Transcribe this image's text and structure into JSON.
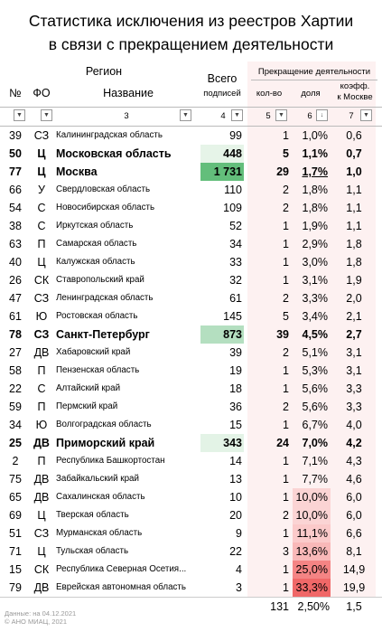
{
  "title_line1": "Статистика исключения из реестров Хартии",
  "title_line2": "в связи с прекращением деятельности",
  "headers": {
    "region": "Регион",
    "num": "№",
    "fo": "ФО",
    "name": "Название",
    "total_line1": "Всего",
    "total_line2": "подписей",
    "termination": "Прекращение деятельности",
    "count": "кол-во",
    "share": "доля",
    "coef_line1": "коэфф.",
    "coef_line2": "к Москве"
  },
  "filter_labels": {
    "col3": "3",
    "col4": "4",
    "col5": "5",
    "col6": "6",
    "col7": "7"
  },
  "rows": [
    {
      "n": "39",
      "fo": "СЗ",
      "name": "Калининградская область",
      "total": "99",
      "cnt": "1",
      "share": "1,0%",
      "coef": "0,6",
      "bold": false,
      "tot_bg": "",
      "sh_bg": ""
    },
    {
      "n": "50",
      "fo": "Ц",
      "name": "Московская область",
      "total": "448",
      "cnt": "5",
      "share": "1,1%",
      "coef": "0,7",
      "bold": true,
      "tot_bg": "#e6f4e8",
      "sh_bg": ""
    },
    {
      "n": "77",
      "fo": "Ц",
      "name": "Москва",
      "total": "1 731",
      "cnt": "29",
      "share": "1,7%",
      "coef": "1,0",
      "bold": true,
      "tot_bg": "#63be7b",
      "sh_bg": "",
      "underline": true
    },
    {
      "n": "66",
      "fo": "У",
      "name": "Свердловская область",
      "total": "110",
      "cnt": "2",
      "share": "1,8%",
      "coef": "1,1",
      "bold": false,
      "tot_bg": "",
      "sh_bg": ""
    },
    {
      "n": "54",
      "fo": "С",
      "name": "Новосибирская область",
      "total": "109",
      "cnt": "2",
      "share": "1,8%",
      "coef": "1,1",
      "bold": false,
      "tot_bg": "",
      "sh_bg": ""
    },
    {
      "n": "38",
      "fo": "С",
      "name": "Иркутская область",
      "total": "52",
      "cnt": "1",
      "share": "1,9%",
      "coef": "1,1",
      "bold": false,
      "tot_bg": "",
      "sh_bg": ""
    },
    {
      "n": "63",
      "fo": "П",
      "name": "Самарская область",
      "total": "34",
      "cnt": "1",
      "share": "2,9%",
      "coef": "1,8",
      "bold": false,
      "tot_bg": "",
      "sh_bg": ""
    },
    {
      "n": "40",
      "fo": "Ц",
      "name": "Калужская область",
      "total": "33",
      "cnt": "1",
      "share": "3,0%",
      "coef": "1,8",
      "bold": false,
      "tot_bg": "",
      "sh_bg": ""
    },
    {
      "n": "26",
      "fo": "СК",
      "name": "Ставропольский край",
      "total": "32",
      "cnt": "1",
      "share": "3,1%",
      "coef": "1,9",
      "bold": false,
      "tot_bg": "",
      "sh_bg": ""
    },
    {
      "n": "47",
      "fo": "СЗ",
      "name": "Ленинградская область",
      "total": "61",
      "cnt": "2",
      "share": "3,3%",
      "coef": "2,0",
      "bold": false,
      "tot_bg": "",
      "sh_bg": ""
    },
    {
      "n": "61",
      "fo": "Ю",
      "name": "Ростовская область",
      "total": "145",
      "cnt": "5",
      "share": "3,4%",
      "coef": "2,1",
      "bold": false,
      "tot_bg": "",
      "sh_bg": ""
    },
    {
      "n": "78",
      "fo": "СЗ",
      "name": "Санкт-Петербург",
      "total": "873",
      "cnt": "39",
      "share": "4,5%",
      "coef": "2,7",
      "bold": true,
      "tot_bg": "#b4dfc0",
      "sh_bg": ""
    },
    {
      "n": "27",
      "fo": "ДВ",
      "name": "Хабаровский край",
      "total": "39",
      "cnt": "2",
      "share": "5,1%",
      "coef": "3,1",
      "bold": false,
      "tot_bg": "",
      "sh_bg": ""
    },
    {
      "n": "58",
      "fo": "П",
      "name": "Пензенская область",
      "total": "19",
      "cnt": "1",
      "share": "5,3%",
      "coef": "3,1",
      "bold": false,
      "tot_bg": "",
      "sh_bg": ""
    },
    {
      "n": "22",
      "fo": "С",
      "name": "Алтайский край",
      "total": "18",
      "cnt": "1",
      "share": "5,6%",
      "coef": "3,3",
      "bold": false,
      "tot_bg": "",
      "sh_bg": ""
    },
    {
      "n": "59",
      "fo": "П",
      "name": "Пермский край",
      "total": "36",
      "cnt": "2",
      "share": "5,6%",
      "coef": "3,3",
      "bold": false,
      "tot_bg": "",
      "sh_bg": ""
    },
    {
      "n": "34",
      "fo": "Ю",
      "name": "Волгоградская область",
      "total": "15",
      "cnt": "1",
      "share": "6,7%",
      "coef": "4,0",
      "bold": false,
      "tot_bg": "",
      "sh_bg": ""
    },
    {
      "n": "25",
      "fo": "ДВ",
      "name": "Приморский край",
      "total": "343",
      "cnt": "24",
      "share": "7,0%",
      "coef": "4,2",
      "bold": true,
      "tot_bg": "#e3f3e6",
      "sh_bg": ""
    },
    {
      "n": "2",
      "fo": "П",
      "name": "Республика Башкортостан",
      "total": "14",
      "cnt": "1",
      "share": "7,1%",
      "coef": "4,3",
      "bold": false,
      "tot_bg": "",
      "sh_bg": ""
    },
    {
      "n": "75",
      "fo": "ДВ",
      "name": "Забайкальский край",
      "total": "13",
      "cnt": "1",
      "share": "7,7%",
      "coef": "4,6",
      "bold": false,
      "tot_bg": "",
      "sh_bg": ""
    },
    {
      "n": "65",
      "fo": "ДВ",
      "name": "Сахалинская область",
      "total": "10",
      "cnt": "1",
      "share": "10,0%",
      "coef": "6,0",
      "bold": false,
      "tot_bg": "",
      "sh_bg": "#fbd4d4"
    },
    {
      "n": "69",
      "fo": "Ц",
      "name": "Тверская область",
      "total": "20",
      "cnt": "2",
      "share": "10,0%",
      "coef": "6,0",
      "bold": false,
      "tot_bg": "",
      "sh_bg": "#fbd4d4"
    },
    {
      "n": "51",
      "fo": "СЗ",
      "name": "Мурманская область",
      "total": "9",
      "cnt": "1",
      "share": "11,1%",
      "coef": "6,6",
      "bold": false,
      "tot_bg": "",
      "sh_bg": "#fbcaca"
    },
    {
      "n": "71",
      "fo": "Ц",
      "name": "Тульская область",
      "total": "22",
      "cnt": "3",
      "share": "13,6%",
      "coef": "8,1",
      "bold": false,
      "tot_bg": "",
      "sh_bg": "#f9b8b8"
    },
    {
      "n": "15",
      "fo": "СК",
      "name": "Республика Северная Осетия...",
      "total": "4",
      "cnt": "1",
      "share": "25,0%",
      "coef": "14,9",
      "bold": false,
      "tot_bg": "",
      "sh_bg": "#f48484"
    },
    {
      "n": "79",
      "fo": "ДВ",
      "name": "Еврейская автономная область",
      "total": "3",
      "cnt": "1",
      "share": "33,3%",
      "coef": "19,9",
      "bold": false,
      "tot_bg": "",
      "sh_bg": "#f06868"
    }
  ],
  "totals": {
    "cnt": "131",
    "share": "2,50%",
    "coef": "1,5"
  },
  "note_line1": "Данные: на 04.12.2021",
  "note_line2": "© АНО МИАЦ, 2021"
}
